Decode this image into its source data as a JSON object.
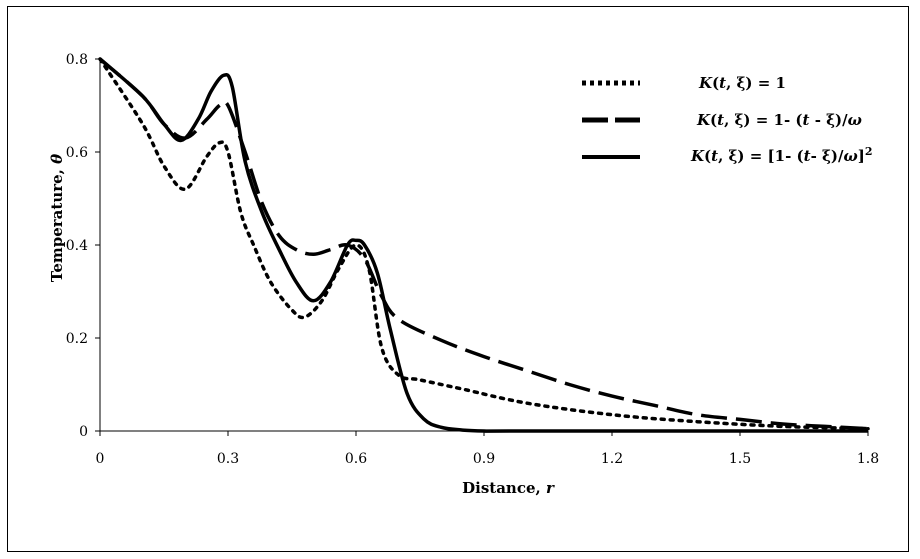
{
  "chart_data": {
    "type": "line",
    "xlabel_main": "Distance, ",
    "xlabel_var": "r",
    "ylabel_main": "Temperature, ",
    "ylabel_var": "θ",
    "xlim": [
      0,
      1.8
    ],
    "ylim": [
      0,
      0.8
    ],
    "xticks": [
      "0",
      "0.3",
      "0.6",
      "0.9",
      "1.2",
      "1.5",
      "1.8"
    ],
    "yticks": [
      "0",
      "0.2",
      "0.4",
      "0.6",
      "0.8"
    ],
    "grid": false,
    "legend_position": "top-right",
    "series": [
      {
        "name": "K(t, ξ) = 1",
        "style": "dotted",
        "x": [
          0,
          0.1,
          0.15,
          0.2,
          0.25,
          0.28,
          0.3,
          0.33,
          0.36,
          0.4,
          0.45,
          0.48,
          0.52,
          0.56,
          0.6,
          0.63,
          0.66,
          0.7,
          0.75,
          0.85,
          1.0,
          1.2,
          1.4,
          1.6,
          1.8
        ],
        "y": [
          0.8,
          0.66,
          0.57,
          0.52,
          0.59,
          0.62,
          0.6,
          0.47,
          0.4,
          0.32,
          0.26,
          0.245,
          0.28,
          0.35,
          0.4,
          0.35,
          0.18,
          0.12,
          0.11,
          0.09,
          0.06,
          0.035,
          0.02,
          0.01,
          0.005
        ]
      },
      {
        "name": "K(t, ξ) = 1- (t - ξ)/ω",
        "style": "dashed",
        "x": [
          0,
          0.1,
          0.15,
          0.2,
          0.25,
          0.28,
          0.3,
          0.34,
          0.38,
          0.42,
          0.46,
          0.5,
          0.54,
          0.58,
          0.62,
          0.66,
          0.7,
          0.8,
          0.9,
          1.0,
          1.1,
          1.2,
          1.3,
          1.4,
          1.5,
          1.6,
          1.7,
          1.8
        ],
        "y": [
          0.8,
          0.72,
          0.66,
          0.63,
          0.67,
          0.7,
          0.7,
          0.6,
          0.49,
          0.42,
          0.39,
          0.38,
          0.39,
          0.4,
          0.37,
          0.29,
          0.24,
          0.195,
          0.16,
          0.13,
          0.1,
          0.075,
          0.055,
          0.035,
          0.025,
          0.015,
          0.01,
          0.005
        ]
      },
      {
        "name": "K(t, ξ) = [1- (t- ξ)/ω]",
        "name_sup": "2",
        "style": "solid",
        "x": [
          0,
          0.1,
          0.15,
          0.19,
          0.23,
          0.26,
          0.29,
          0.31,
          0.34,
          0.38,
          0.42,
          0.46,
          0.5,
          0.54,
          0.58,
          0.6,
          0.62,
          0.65,
          0.68,
          0.72,
          0.76,
          0.8,
          0.85,
          0.9,
          1.0,
          1.8
        ],
        "y": [
          0.8,
          0.72,
          0.66,
          0.625,
          0.67,
          0.73,
          0.765,
          0.74,
          0.58,
          0.47,
          0.39,
          0.32,
          0.28,
          0.32,
          0.4,
          0.41,
          0.4,
          0.34,
          0.22,
          0.08,
          0.025,
          0.008,
          0.002,
          0.0,
          0.0,
          0.0
        ]
      }
    ]
  }
}
